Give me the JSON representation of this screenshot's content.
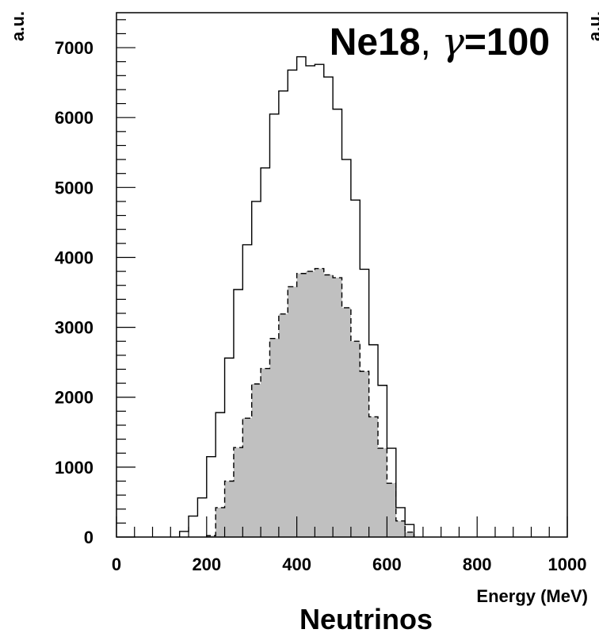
{
  "chart_data": {
    "type": "histogram",
    "title_main": "Ne18",
    "title_sep": ", ",
    "title_symbol": "γ",
    "title_value": "=100",
    "ylabel": "a.u.",
    "xlabel": "Energy (MeV)",
    "caption": "Neutrinos",
    "right_edge_clip": "a.u.",
    "xlim": [
      0,
      1000
    ],
    "ylim": [
      0,
      7500
    ],
    "xticks": [
      0,
      200,
      400,
      600,
      800,
      1000
    ],
    "yticks": [
      0,
      1000,
      2000,
      3000,
      4000,
      5000,
      6000,
      7000
    ],
    "xtick_labels": [
      "0",
      "200",
      "400",
      "600",
      "800",
      "1000"
    ],
    "ytick_labels": [
      "0",
      "1000",
      "2000",
      "3000",
      "4000",
      "5000",
      "6000",
      "7000"
    ],
    "bin_width": 20,
    "grid": false,
    "legend": "none",
    "series": [
      {
        "style": "solid-outline",
        "color": "#000000",
        "bin_start": [
          140,
          160,
          180,
          200,
          220,
          240,
          260,
          280,
          300,
          320,
          340,
          360,
          380,
          400,
          420,
          440,
          460,
          480,
          500,
          520,
          540,
          560,
          580,
          600,
          620,
          640
        ],
        "values": [
          80,
          300,
          560,
          1150,
          1780,
          2560,
          3540,
          4180,
          4800,
          5280,
          6050,
          6380,
          6680,
          6870,
          6740,
          6760,
          6580,
          6120,
          5400,
          4820,
          3830,
          2750,
          2170,
          1270,
          420,
          180
        ]
      },
      {
        "style": "dashed-filled",
        "color": "#000000",
        "fill": "#c0c0c0",
        "bin_start": [
          200,
          220,
          240,
          260,
          280,
          300,
          320,
          340,
          360,
          380,
          400,
          420,
          440,
          460,
          480,
          500,
          520,
          540,
          560,
          580,
          600,
          620,
          640
        ],
        "values": [
          20,
          420,
          800,
          1280,
          1700,
          2190,
          2410,
          2840,
          3190,
          3580,
          3770,
          3800,
          3840,
          3750,
          3710,
          3280,
          2800,
          2370,
          1720,
          1270,
          770,
          230,
          70
        ]
      }
    ]
  }
}
